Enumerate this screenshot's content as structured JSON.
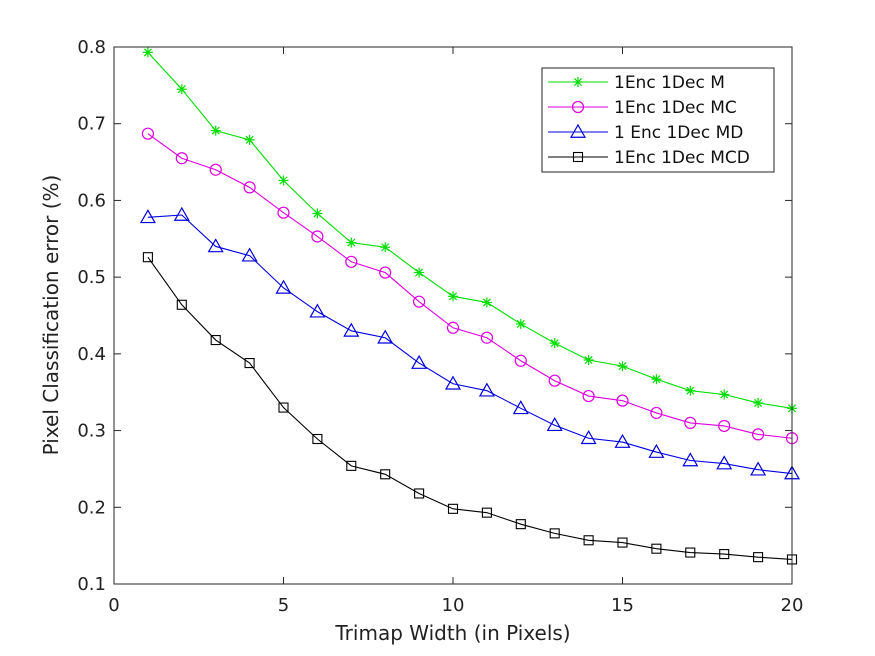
{
  "chart_data": {
    "type": "line",
    "title": "",
    "xlabel": "Trimap Width (in Pixels)",
    "ylabel": "Pixel Classification error (%)",
    "xlim": [
      0,
      20
    ],
    "ylim": [
      0.1,
      0.8
    ],
    "xticks": [
      0,
      5,
      10,
      15,
      20
    ],
    "yticks": [
      0.1,
      0.2,
      0.3,
      0.4,
      0.5,
      0.6,
      0.7,
      0.8
    ],
    "grid": false,
    "legend_position": "top-right",
    "x": [
      1,
      2,
      3,
      4,
      5,
      6,
      7,
      8,
      9,
      10,
      11,
      12,
      13,
      14,
      15,
      16,
      17,
      18,
      19,
      20
    ],
    "series": [
      {
        "name": "1Enc 1Dec M",
        "color": "#00dd00",
        "marker": "asterisk",
        "values": [
          0.793,
          0.745,
          0.691,
          0.679,
          0.626,
          0.583,
          0.545,
          0.539,
          0.506,
          0.475,
          0.467,
          0.439,
          0.414,
          0.392,
          0.384,
          0.367,
          0.352,
          0.347,
          0.336,
          0.329
        ]
      },
      {
        "name": "1Enc 1Dec MC",
        "color": "#dd00dd",
        "marker": "circle",
        "values": [
          0.687,
          0.655,
          0.64,
          0.617,
          0.584,
          0.553,
          0.52,
          0.506,
          0.468,
          0.434,
          0.421,
          0.391,
          0.365,
          0.345,
          0.339,
          0.323,
          0.31,
          0.306,
          0.295,
          0.29
        ]
      },
      {
        "name": "1 Enc 1Dec MD",
        "color": "#0000dd",
        "marker": "triangle",
        "values": [
          0.578,
          0.581,
          0.54,
          0.528,
          0.486,
          0.455,
          0.43,
          0.421,
          0.388,
          0.361,
          0.352,
          0.329,
          0.307,
          0.29,
          0.285,
          0.272,
          0.261,
          0.257,
          0.249,
          0.244
        ]
      },
      {
        "name": "1Enc 1Dec MCD",
        "color": "#000000",
        "marker": "square",
        "values": [
          0.526,
          0.464,
          0.418,
          0.388,
          0.33,
          0.289,
          0.254,
          0.243,
          0.218,
          0.198,
          0.193,
          0.178,
          0.166,
          0.157,
          0.154,
          0.146,
          0.141,
          0.139,
          0.135,
          0.132
        ]
      }
    ]
  }
}
